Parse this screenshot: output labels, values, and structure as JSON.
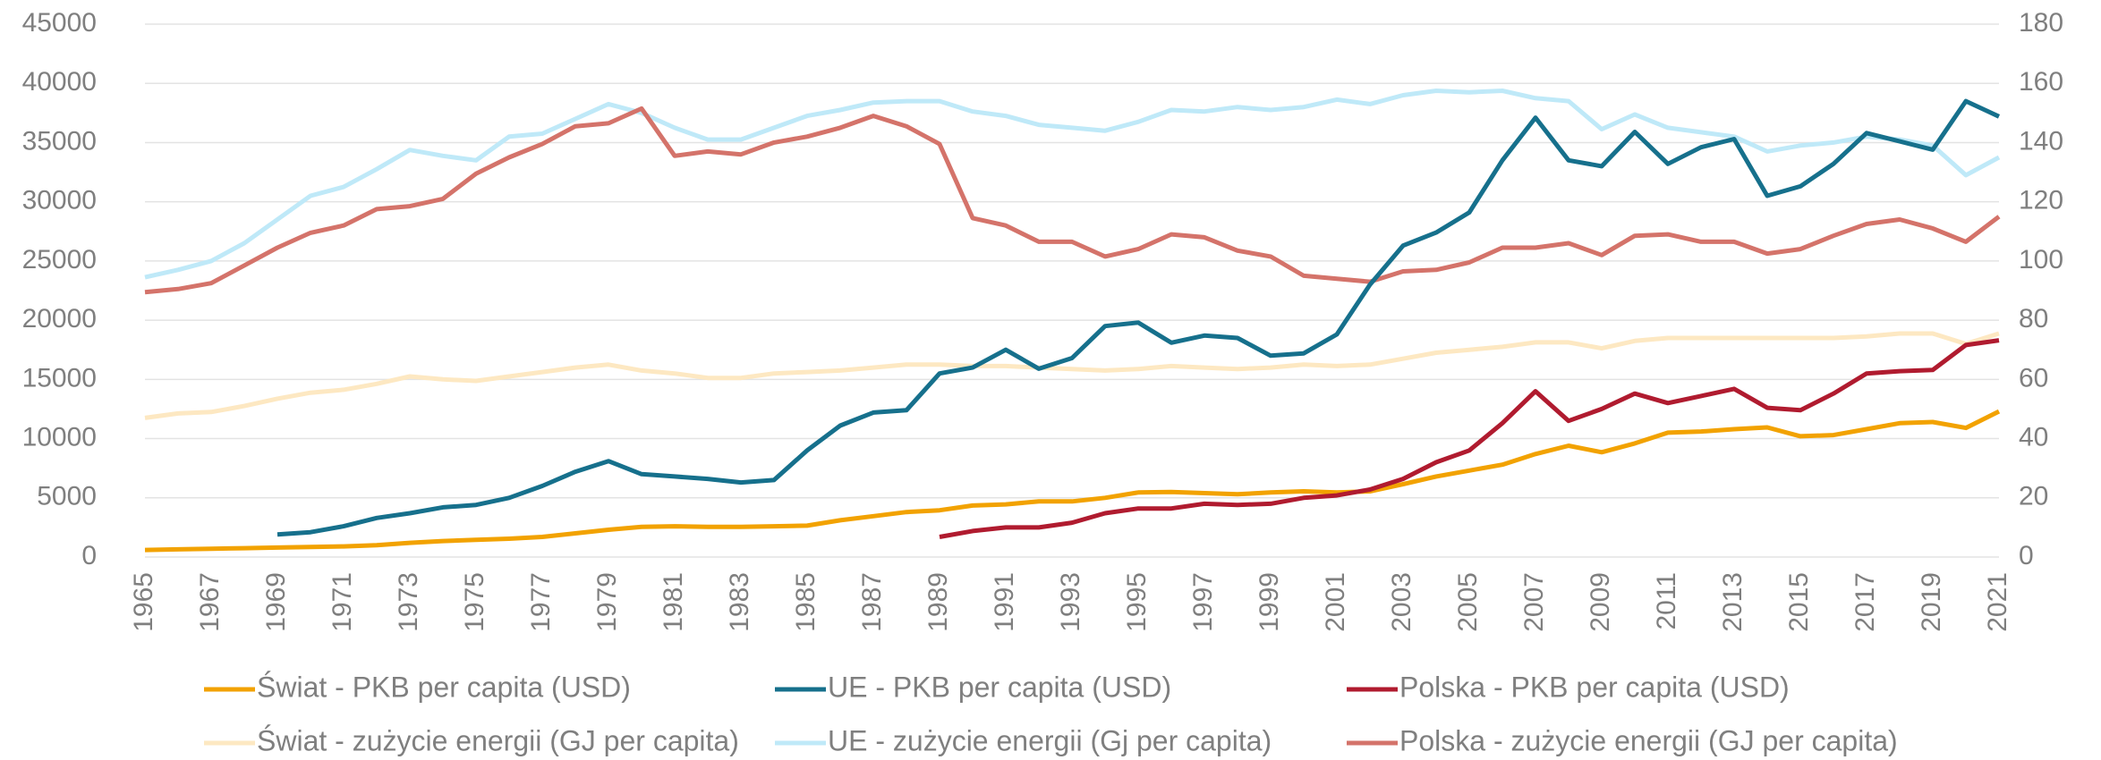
{
  "chart_data": {
    "type": "line",
    "x": [
      1965,
      1966,
      1967,
      1968,
      1969,
      1970,
      1971,
      1972,
      1973,
      1974,
      1975,
      1976,
      1977,
      1978,
      1979,
      1980,
      1981,
      1982,
      1983,
      1984,
      1985,
      1986,
      1987,
      1988,
      1989,
      1990,
      1991,
      1992,
      1993,
      1994,
      1995,
      1996,
      1997,
      1998,
      1999,
      2000,
      2001,
      2002,
      2003,
      2004,
      2005,
      2006,
      2007,
      2008,
      2009,
      2010,
      2011,
      2012,
      2013,
      2014,
      2015,
      2016,
      2017,
      2018,
      2019,
      2020,
      2021
    ],
    "xlim": [
      1965,
      2021
    ],
    "xticks": [
      1965,
      1967,
      1969,
      1971,
      1973,
      1975,
      1977,
      1979,
      1981,
      1983,
      1985,
      1987,
      1989,
      1991,
      1993,
      1995,
      1997,
      1999,
      2001,
      2003,
      2005,
      2007,
      2009,
      2011,
      2013,
      2015,
      2017,
      2019,
      2021
    ],
    "ylim": [
      0,
      45000
    ],
    "yticks": [
      0,
      5000,
      10000,
      15000,
      20000,
      25000,
      30000,
      35000,
      40000,
      45000
    ],
    "y2lim": [
      0,
      180
    ],
    "y2ticks": [
      0,
      20,
      40,
      60,
      80,
      100,
      120,
      140,
      160,
      180
    ],
    "grid": true,
    "legend": "bottom",
    "series": [
      {
        "name": "Świat - PKB per capita (USD)",
        "color": "#f2a200",
        "values": [
          600,
          650,
          700,
          750,
          800,
          850,
          900,
          1000,
          1200,
          1350,
          1450,
          1550,
          1700,
          2000,
          2300,
          2550,
          2600,
          2550,
          2550,
          2600,
          2650,
          3100,
          3450,
          3800,
          3950,
          4350,
          4450,
          4700,
          4700,
          5000,
          5450,
          5500,
          5400,
          5300,
          5450,
          5550,
          5450,
          5550,
          6150,
          6800,
          7300,
          7800,
          8700,
          9400,
          8850,
          9600,
          10500,
          10600,
          10800,
          10950,
          10200,
          10300,
          10800,
          11300,
          11400,
          10900,
          12300
        ]
      },
      {
        "name": "UE - PKB per capita (USD)",
        "color": "#16708c",
        "values": [
          null,
          null,
          null,
          null,
          1900,
          2100,
          2600,
          3300,
          3700,
          4200,
          4400,
          5000,
          6000,
          7200,
          8100,
          7000,
          6800,
          6600,
          6300,
          6500,
          9000,
          11100,
          12200,
          12400,
          15500,
          16000,
          17500,
          15900,
          16800,
          19500,
          19800,
          18100,
          18700,
          18500,
          17000,
          17200,
          18800,
          23000,
          26300,
          27400,
          29100,
          33500,
          37100,
          33500,
          33000,
          35900,
          33200,
          34600,
          35300,
          30500,
          31300,
          33200,
          35800,
          35100,
          34400,
          38500,
          37200
        ]
      },
      {
        "name": "Polska - PKB per capita (USD)",
        "color": "#b01b2f",
        "values": [
          null,
          null,
          null,
          null,
          null,
          null,
          null,
          null,
          null,
          null,
          null,
          null,
          null,
          null,
          null,
          null,
          null,
          null,
          null,
          null,
          null,
          null,
          null,
          null,
          1700,
          2200,
          2500,
          2500,
          2900,
          3700,
          4100,
          4100,
          4500,
          4400,
          4500,
          5000,
          5200,
          5700,
          6600,
          8000,
          9000,
          11300,
          14000,
          11500,
          12500,
          13800,
          13000,
          13600,
          14200,
          12600,
          12400,
          13800,
          15500,
          15700,
          15800,
          17900,
          18300
        ]
      },
      {
        "name": "Świat - zużycie energii (GJ per capita)",
        "color": "#fde8c2",
        "axis": "y2",
        "values": [
          47,
          48.5,
          49,
          51,
          53.5,
          55.5,
          56.5,
          58.5,
          61,
          60,
          59.5,
          61,
          62.5,
          64,
          65,
          63,
          62,
          60.5,
          60.5,
          62,
          62.5,
          63,
          64,
          65,
          65,
          64.5,
          64.5,
          64,
          63.5,
          63,
          63.5,
          64.5,
          64,
          63.5,
          64,
          65,
          64.5,
          65,
          67,
          69,
          70,
          71,
          72.5,
          72.5,
          70.5,
          73,
          74,
          74,
          74,
          74,
          74,
          74,
          74.5,
          75.5,
          75.5,
          72,
          75.5
        ]
      },
      {
        "name": "UE - zużycie energii (Gj per capita)",
        "color": "#bfe9f8",
        "axis": "y2",
        "values": [
          94.5,
          97,
          100,
          106,
          114,
          122,
          125,
          131,
          137.5,
          135.5,
          134,
          142,
          143,
          148,
          153,
          150,
          145,
          141,
          141,
          145,
          149,
          151,
          153.5,
          154,
          154,
          150.5,
          149,
          146,
          145,
          144,
          147,
          151,
          150.5,
          152,
          151,
          152,
          154.5,
          153,
          156,
          157.5,
          157,
          157.5,
          155,
          154,
          144.5,
          149.5,
          145,
          143.5,
          142,
          137,
          139,
          140,
          142,
          141,
          139,
          129,
          135
        ]
      },
      {
        "name": "Polska - zużycie energii (GJ per capita)",
        "color": "#d4736a",
        "axis": "y2",
        "values": [
          89.5,
          90.5,
          92.5,
          98.5,
          104.5,
          109.5,
          112,
          117.5,
          118.5,
          121,
          129.5,
          135,
          139.5,
          145.5,
          146.5,
          151.5,
          135.5,
          137,
          136,
          140,
          142,
          145,
          149,
          145.5,
          139.5,
          114.5,
          112,
          106.5,
          106.5,
          101.5,
          104,
          109,
          108,
          103.5,
          101.5,
          95,
          94,
          93,
          96.5,
          97,
          99.5,
          104.5,
          104.5,
          106,
          102,
          108.5,
          109,
          106.5,
          106.5,
          102.5,
          104,
          108.5,
          112.5,
          114,
          111,
          106.5,
          115
        ]
      }
    ]
  }
}
